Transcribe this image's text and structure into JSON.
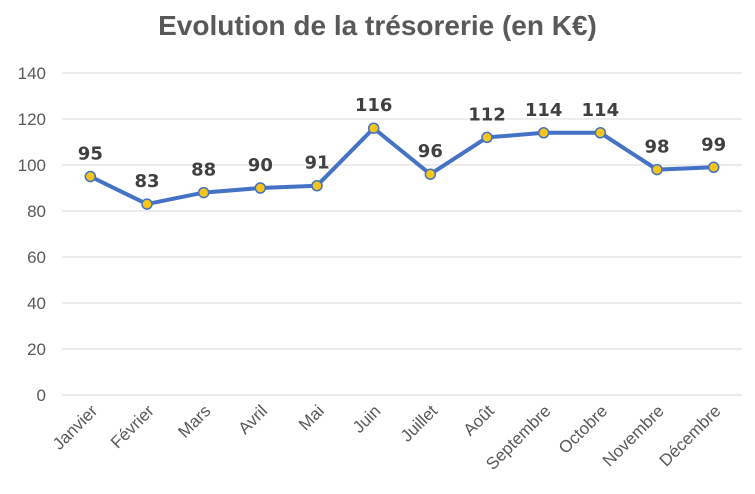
{
  "chart_data": {
    "type": "line",
    "title": "Evolution de la trésorerie (en K€)",
    "categories": [
      "Janvier",
      "Février",
      "Mars",
      "Avril",
      "Mai",
      "Juin",
      "Juillet",
      "Août",
      "Septembre",
      "Octobre",
      "Novembre",
      "Décembre"
    ],
    "series": [
      {
        "values": [
          95,
          83,
          88,
          90,
          91,
          116,
          96,
          112,
          114,
          114,
          98,
          99
        ]
      }
    ],
    "data_labels": [
      "95",
      "83",
      "88",
      "90",
      "91",
      "116",
      "96",
      "112",
      "114",
      "114",
      "98",
      "99"
    ],
    "y_ticks": [
      "0",
      "20",
      "40",
      "60",
      "80",
      "100",
      "120",
      "140"
    ],
    "ylim": [
      0,
      140
    ],
    "grid": true,
    "legend": "none",
    "colors": {
      "line": "#4472C4",
      "marker_fill": "#F5C518",
      "marker_stroke": "#4472C4",
      "grid": "#D9D9D9"
    }
  }
}
